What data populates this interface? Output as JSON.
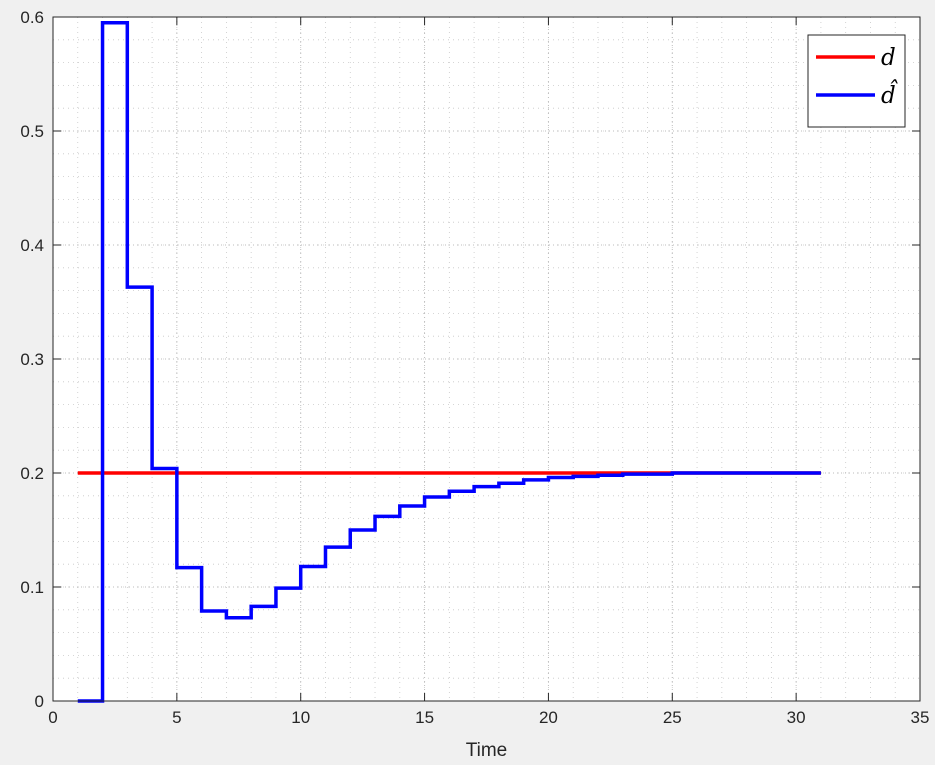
{
  "chart_data": {
    "type": "line",
    "xlabel": "Time",
    "ylabel": "",
    "xlim": [
      0,
      35
    ],
    "ylim": [
      0,
      0.6
    ],
    "xticks": [
      0,
      5,
      10,
      15,
      20,
      25,
      30,
      35
    ],
    "yticks": [
      0,
      0.1,
      0.2,
      0.3,
      0.4,
      0.5,
      0.6
    ],
    "grid": true,
    "minor_grid": true,
    "legend_position": "top-right",
    "series": [
      {
        "name": "d",
        "color": "#ff0000",
        "step": false,
        "x": [
          1,
          31
        ],
        "y": [
          0.2,
          0.2
        ]
      },
      {
        "name": "d̂",
        "color": "#0000ff",
        "step": true,
        "x": [
          1,
          2,
          3,
          4,
          5,
          6,
          7,
          8,
          9,
          10,
          11,
          12,
          13,
          14,
          15,
          16,
          17,
          18,
          19,
          20,
          21,
          22,
          23,
          24,
          25,
          26,
          27,
          28,
          29,
          30,
          31
        ],
        "y": [
          0,
          0.595,
          0.363,
          0.204,
          0.117,
          0.079,
          0.073,
          0.083,
          0.099,
          0.118,
          0.135,
          0.15,
          0.162,
          0.171,
          0.179,
          0.184,
          0.188,
          0.191,
          0.194,
          0.196,
          0.197,
          0.198,
          0.199,
          0.199,
          0.2,
          0.2,
          0.2,
          0.2,
          0.2,
          0.2,
          0.2
        ]
      }
    ]
  }
}
